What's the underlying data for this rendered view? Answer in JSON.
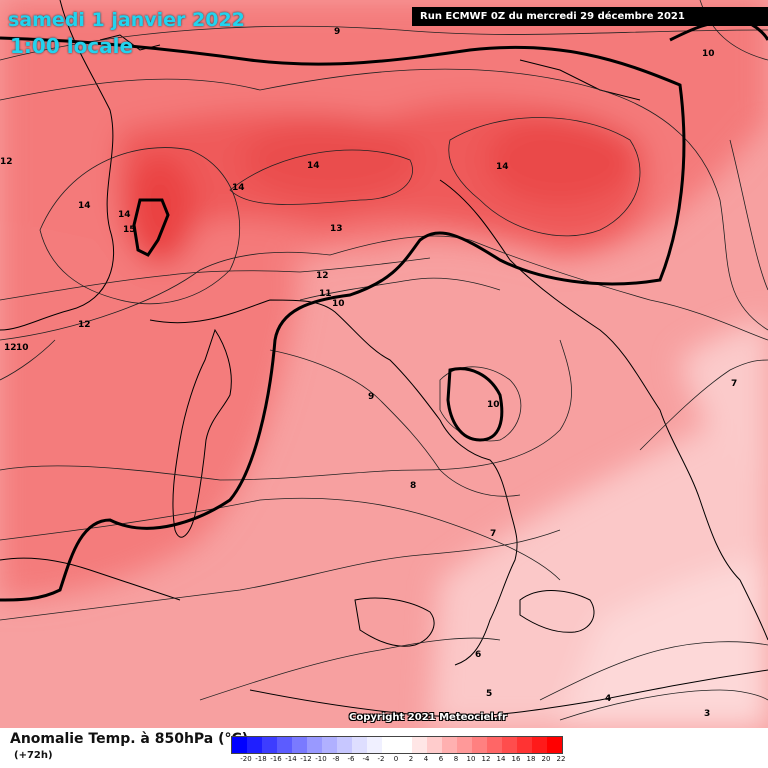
{
  "header": {
    "date": "samedi 1 janvier 2022",
    "time": "1:00 locale",
    "run": "Run ECMWF 0Z du mercredi 29 décembre 2021"
  },
  "footer": {
    "title": "Anomalie Temp. à 850hPa (°C)",
    "lead": "(+72h)",
    "copyright": "Copyright 2021 Meteociel.fr"
  },
  "colors": {
    "background": "#f49a9a",
    "land_line": "#000000"
  },
  "scale": {
    "ticks": [
      "-20",
      "-18",
      "-16",
      "-14",
      "-12",
      "-10",
      "-8",
      "-6",
      "-4",
      "-2",
      "0",
      "2",
      "4",
      "6",
      "8",
      "10",
      "12",
      "14",
      "16",
      "18",
      "20",
      "22"
    ],
    "colors": [
      "#0000ff",
      "#1f1fff",
      "#3d3dff",
      "#5c5cff",
      "#7a7aff",
      "#9999ff",
      "#b0b0ff",
      "#c7c7ff",
      "#dedeff",
      "#f0f0ff",
      "#ffffff",
      "#ffffff",
      "#ffe6e6",
      "#ffcccc",
      "#ffb0b0",
      "#ff9999",
      "#ff8080",
      "#ff6666",
      "#ff4d4d",
      "#ff3333",
      "#ff1a1a",
      "#ff0000"
    ]
  },
  "contour_labels": [
    "9",
    "10",
    "14",
    "14",
    "14",
    "14",
    "14",
    "15",
    "13",
    "12",
    "12",
    "12",
    "11",
    "10",
    "9",
    "10",
    "8",
    "7",
    "7",
    "6",
    "5",
    "4",
    "3",
    "12",
    "10"
  ]
}
